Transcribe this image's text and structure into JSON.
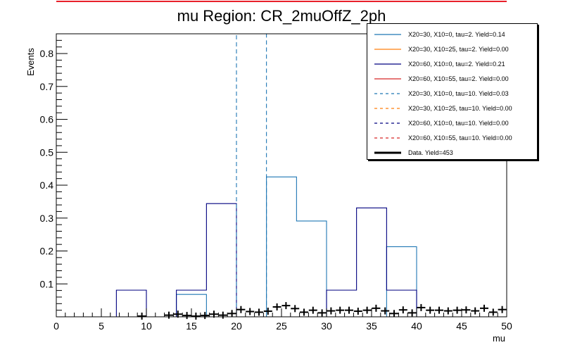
{
  "chart_data": {
    "type": "histogram",
    "title": "mu Region: CR_2muOffZ_2ph",
    "xlabel": "mu",
    "ylabel": "Events",
    "xlim": [
      0,
      50
    ],
    "ylim": [
      0,
      0.86
    ],
    "x_ticks": [
      "0",
      "5",
      "10",
      "15",
      "20",
      "25",
      "30",
      "35",
      "40",
      "45",
      "50"
    ],
    "y_ticks": [
      "0.1",
      "0.2",
      "0.3",
      "0.4",
      "0.5",
      "0.6",
      "0.7",
      "0.8"
    ],
    "y_tick_values": [
      0.1,
      0.2,
      0.3,
      0.4,
      0.5,
      0.6,
      0.7,
      0.8
    ],
    "bin_edges": [
      0,
      3.33,
      6.67,
      10,
      13.33,
      16.67,
      20,
      23.33,
      26.67,
      30,
      33.33,
      36.67,
      40,
      43.33,
      46.67,
      50
    ],
    "series": [
      {
        "name": "X20=30, X10=0, tau=2. Yield=0.14",
        "color": "#1f77b4",
        "dash": false,
        "values": [
          0,
          0,
          0,
          0,
          0.068,
          0,
          0,
          0.425,
          0.291,
          0,
          0,
          0.213,
          0,
          0,
          0
        ]
      },
      {
        "name": "X20=30, X10=25, tau=2. Yield=0.00",
        "color": "#ff7f0e",
        "dash": false,
        "values": [
          0,
          0,
          0,
          0,
          0,
          0,
          0,
          0,
          0,
          0,
          0,
          0,
          0,
          0,
          0
        ]
      },
      {
        "name": "X20=60, X10=0, tau=2. Yield=0.21",
        "color": "#000080",
        "dash": false,
        "values": [
          0,
          0,
          0.081,
          0,
          0.081,
          0.344,
          0,
          0,
          0,
          0.081,
          0.331,
          0.081,
          0,
          0,
          0
        ]
      },
      {
        "name": "X20=60, X10=55, tau=2. Yield=0.00",
        "color": "#d62728",
        "dash": false,
        "values": [
          0,
          0,
          0,
          0,
          0,
          0,
          0,
          0,
          0,
          0,
          0,
          0,
          0,
          0,
          0
        ]
      },
      {
        "name": "X20=30, X10=0, tau=10. Yield=0.03",
        "color": "#1f77b4",
        "dash": true,
        "values": [
          0,
          0,
          0,
          0,
          0,
          0,
          0.86,
          0,
          0,
          0,
          0,
          0,
          0,
          0,
          0
        ]
      },
      {
        "name": "X20=30, X10=25, tau=10. Yield=0.00",
        "color": "#ff7f0e",
        "dash": true,
        "values": [
          0,
          0,
          0,
          0,
          0,
          0,
          0,
          0,
          0,
          0,
          0,
          0,
          0,
          0,
          0
        ]
      },
      {
        "name": "X20=60, X10=0, tau=10. Yield=0.00",
        "color": "#000080",
        "dash": true,
        "values": [
          0,
          0,
          0,
          0,
          0,
          0,
          0,
          0,
          0,
          0,
          0,
          0,
          0,
          0,
          0
        ]
      },
      {
        "name": "X20=60, X10=55, tau=10. Yield=0.00",
        "color": "#d62728",
        "dash": true,
        "values": [
          0,
          0,
          0,
          0,
          0,
          0,
          0,
          0,
          0,
          0,
          0,
          0,
          0,
          0,
          0
        ]
      }
    ],
    "data": {
      "name": "Data. Yield=453",
      "color": "#000000",
      "x": [
        12.5,
        13.5,
        14.5,
        15.5,
        16.5,
        17.5,
        18.5,
        19.5,
        20.5,
        21.5,
        22.5,
        23.5,
        24.5,
        25.5,
        26.5,
        27.5,
        28.5,
        29.5,
        30.5,
        31.5,
        32.5,
        33.5,
        34.5,
        35.5,
        36.5,
        37.5,
        38.5,
        39.5,
        40.5,
        41.5,
        42.5,
        43.5,
        44.5,
        45.5,
        46.5,
        47.5,
        48.5,
        49.5
      ],
      "y": [
        0.005,
        0.008,
        0.004,
        0.002,
        0.004,
        0.008,
        0.005,
        0.01,
        0.022,
        0.016,
        0.014,
        0.017,
        0.03,
        0.034,
        0.025,
        0.014,
        0.02,
        0.012,
        0.018,
        0.02,
        0.02,
        0.017,
        0.02,
        0.026,
        0.018,
        0.01,
        0.021,
        0.012,
        0.028,
        0.02,
        0.02,
        0.018,
        0.02,
        0.021,
        0.018,
        0.026,
        0.014,
        0.022
      ],
      "extra": [
        {
          "x": 9.5,
          "y": 0.002
        }
      ]
    }
  },
  "legend": {
    "entries": [
      "X20=30, X10=0, tau=2. Yield=0.14",
      "X20=30, X10=25, tau=2. Yield=0.00",
      "X20=60, X10=0, tau=2. Yield=0.21",
      "X20=60, X10=55, tau=2. Yield=0.00",
      "X20=30, X10=0, tau=10. Yield=0.03",
      "X20=30, X10=25, tau=10. Yield=0.00",
      "X20=60, X10=0, tau=10. Yield=0.00",
      "X20=60, X10=55, tau=10. Yield=0.00",
      "Data. Yield=453"
    ]
  },
  "colors": {
    "top_bar": "#e8202a",
    "axis": "#000000"
  }
}
